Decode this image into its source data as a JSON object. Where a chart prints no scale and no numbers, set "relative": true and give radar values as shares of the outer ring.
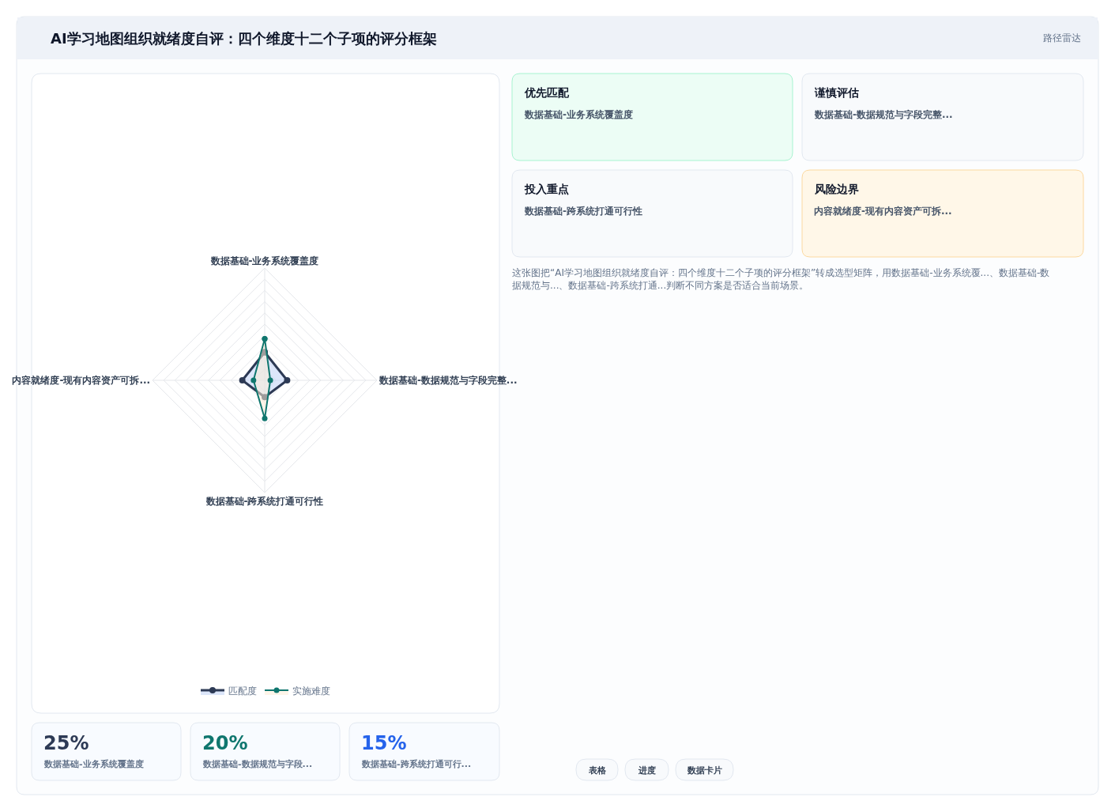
{
  "chart_data": [
    {
      "type": "radar",
      "title": "AI学习地图组织就绪度自评：四个维度十二个子项的评分框架",
      "categories": [
        "数据基础-业务系统覆盖度",
        "数据基础-数据规范与字段完整...",
        "数据基础-跨系统打通可行性",
        "内容就绪度-现有内容资产可拆..."
      ],
      "relative": true,
      "grid": true,
      "legend": "bottom",
      "marker": "circle",
      "series": [
        {
          "name": "匹配度",
          "color": "#2d3a55",
          "values": [
            0.25,
            0.2,
            0.15,
            0.2
          ]
        },
        {
          "name": "实施难度",
          "color": "#0f766e",
          "values": [
            0.37,
            0.05,
            0.34,
            0.1
          ]
        }
      ]
    },
    {
      "type": "other",
      "subtitle": "路径雷达",
      "annotations": [
        "优先匹配",
        "数据基础-业务系统覆盖度",
        "谨慎评估",
        "数据基础-数据规范与字段完整...",
        "投入重点",
        "数据基础-跨系统打通可行性",
        "风险边界",
        "内容就绪度-现有内容资产可拆...",
        "这张图把“AI学习地图组织就绪度自评：四个维度十二个子项的评分框架”转成选型矩阵，用数据基础-业务系统覆...、数据基础-数据规范与...、数据基础-跨系统打通...判断不同方案是否适合当前场景。",
        "25%",
        "数据基础-业务系统覆盖度",
        "20%",
        "数据基础-数据规范与字段...",
        "15%",
        "数据基础-跨系统打通可行...",
        "表格",
        "进度",
        "数据卡片"
      ]
    }
  ]
}
